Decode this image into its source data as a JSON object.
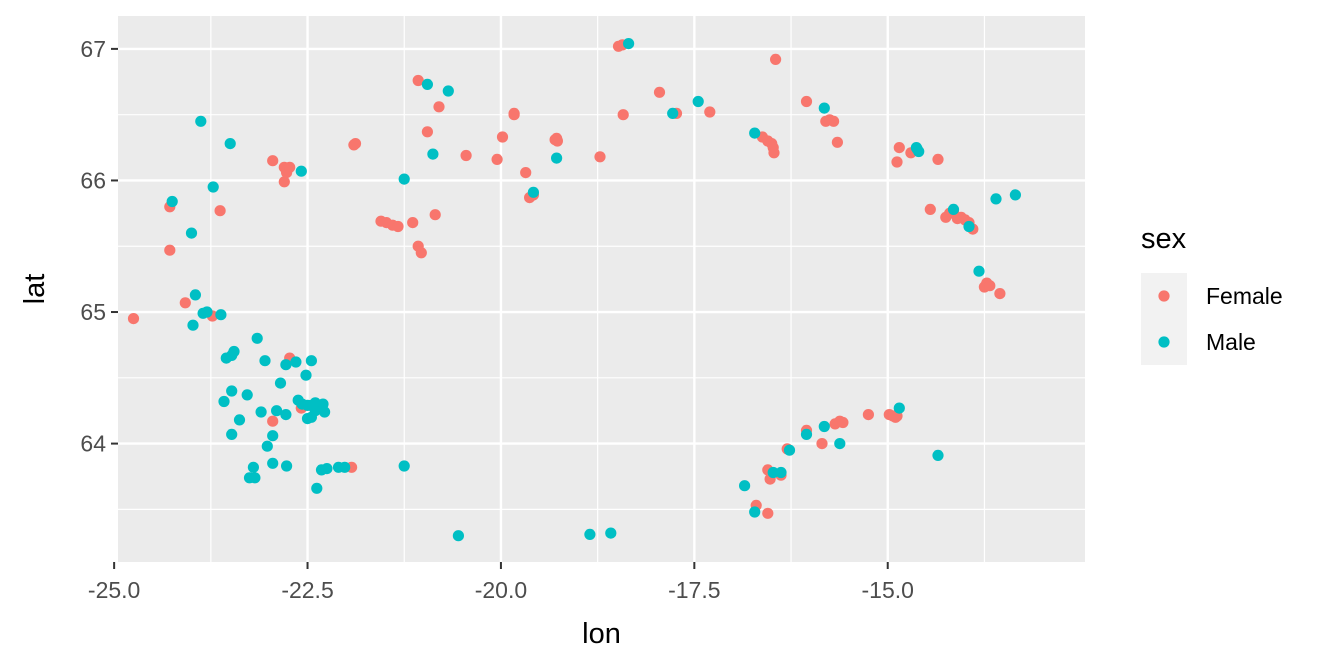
{
  "chart_data": {
    "type": "scatter",
    "title": "",
    "xlabel": "lon",
    "ylabel": "lat",
    "xlim": [
      -24.95,
      -12.45
    ],
    "ylim": [
      63.1,
      67.25
    ],
    "x_ticks": [
      -25.0,
      -22.5,
      -20.0,
      -17.5,
      -15.0
    ],
    "x_tick_labels": [
      "-25.0",
      "-22.5",
      "-20.0",
      "-17.5",
      "-15.0"
    ],
    "y_ticks": [
      64,
      65,
      66,
      67
    ],
    "y_tick_labels": [
      "64",
      "65",
      "66",
      "67"
    ],
    "grid": true,
    "legend": {
      "title": "sex",
      "position": "right"
    },
    "series": [
      {
        "name": "Female",
        "color": "#F8766D",
        "points": [
          [
            -24.75,
            64.95
          ],
          [
            -24.28,
            65.8
          ],
          [
            -24.28,
            65.47
          ],
          [
            -24.08,
            65.07
          ],
          [
            -23.73,
            64.97
          ],
          [
            -23.63,
            65.77
          ],
          [
            -22.95,
            66.15
          ],
          [
            -22.8,
            66.1
          ],
          [
            -22.77,
            66.06
          ],
          [
            -22.8,
            65.99
          ],
          [
            -22.73,
            66.1
          ],
          [
            -22.73,
            64.65
          ],
          [
            -22.95,
            64.17
          ],
          [
            -22.58,
            64.27
          ],
          [
            -21.93,
            63.82
          ],
          [
            -21.88,
            66.28
          ],
          [
            -21.9,
            66.27
          ],
          [
            -21.55,
            65.69
          ],
          [
            -21.48,
            65.68
          ],
          [
            -21.4,
            65.66
          ],
          [
            -21.33,
            65.65
          ],
          [
            -21.14,
            65.68
          ],
          [
            -21.07,
            65.5
          ],
          [
            -21.03,
            65.45
          ],
          [
            -20.85,
            65.74
          ],
          [
            -21.07,
            66.76
          ],
          [
            -20.95,
            66.37
          ],
          [
            -20.8,
            66.56
          ],
          [
            -20.45,
            66.19
          ],
          [
            -20.05,
            66.16
          ],
          [
            -19.98,
            66.33
          ],
          [
            -19.83,
            66.5
          ],
          [
            -19.83,
            66.51
          ],
          [
            -19.68,
            66.06
          ],
          [
            -19.63,
            65.87
          ],
          [
            -19.58,
            65.89
          ],
          [
            -19.3,
            66.31
          ],
          [
            -19.27,
            66.3
          ],
          [
            -19.28,
            66.32
          ],
          [
            -18.72,
            66.18
          ],
          [
            -18.48,
            67.02
          ],
          [
            -18.43,
            67.03
          ],
          [
            -18.42,
            66.5
          ],
          [
            -17.95,
            66.67
          ],
          [
            -17.73,
            66.51
          ],
          [
            -17.3,
            66.52
          ],
          [
            -16.62,
            66.33
          ],
          [
            -16.55,
            66.3
          ],
          [
            -16.5,
            66.28
          ],
          [
            -16.48,
            66.25
          ],
          [
            -16.47,
            66.21
          ],
          [
            -16.45,
            66.92
          ],
          [
            -16.05,
            66.6
          ],
          [
            -15.8,
            66.45
          ],
          [
            -15.75,
            66.46
          ],
          [
            -15.7,
            66.45
          ],
          [
            -15.65,
            66.29
          ],
          [
            -14.85,
            66.25
          ],
          [
            -14.88,
            66.14
          ],
          [
            -14.7,
            66.21
          ],
          [
            -14.45,
            65.78
          ],
          [
            -14.35,
            66.16
          ],
          [
            -14.2,
            65.75
          ],
          [
            -14.15,
            65.76
          ],
          [
            -14.1,
            65.71
          ],
          [
            -14.05,
            65.72
          ],
          [
            -14.0,
            65.7
          ],
          [
            -13.95,
            65.68
          ],
          [
            -13.9,
            65.63
          ],
          [
            -14.25,
            65.72
          ],
          [
            -13.75,
            65.19
          ],
          [
            -13.72,
            65.22
          ],
          [
            -13.68,
            65.2
          ],
          [
            -13.55,
            65.14
          ],
          [
            -15.25,
            64.22
          ],
          [
            -14.98,
            64.22
          ],
          [
            -14.93,
            64.21
          ],
          [
            -14.88,
            64.21
          ],
          [
            -14.9,
            64.2
          ],
          [
            -15.68,
            64.15
          ],
          [
            -15.62,
            64.17
          ],
          [
            -15.58,
            64.16
          ],
          [
            -15.85,
            64.0
          ],
          [
            -16.05,
            64.1
          ],
          [
            -16.3,
            63.96
          ],
          [
            -16.55,
            63.8
          ],
          [
            -16.52,
            63.73
          ],
          [
            -16.38,
            63.76
          ],
          [
            -16.7,
            63.53
          ],
          [
            -16.55,
            63.47
          ]
        ]
      },
      {
        "name": "Male",
        "color": "#00BFC4",
        "points": [
          [
            -24.25,
            65.84
          ],
          [
            -24.0,
            65.6
          ],
          [
            -23.72,
            65.95
          ],
          [
            -23.88,
            66.45
          ],
          [
            -23.5,
            66.28
          ],
          [
            -23.95,
            65.13
          ],
          [
            -23.85,
            64.99
          ],
          [
            -23.8,
            65.0
          ],
          [
            -23.62,
            64.98
          ],
          [
            -23.98,
            64.9
          ],
          [
            -23.55,
            64.65
          ],
          [
            -23.48,
            64.67
          ],
          [
            -23.45,
            64.7
          ],
          [
            -23.15,
            64.8
          ],
          [
            -23.05,
            64.63
          ],
          [
            -22.85,
            64.46
          ],
          [
            -22.78,
            64.6
          ],
          [
            -22.65,
            64.62
          ],
          [
            -22.45,
            64.63
          ],
          [
            -22.52,
            64.52
          ],
          [
            -22.62,
            64.33
          ],
          [
            -22.57,
            64.3
          ],
          [
            -22.5,
            64.29
          ],
          [
            -22.45,
            64.29
          ],
          [
            -22.4,
            64.31
          ],
          [
            -22.35,
            64.28
          ],
          [
            -22.3,
            64.3
          ],
          [
            -22.4,
            64.25
          ],
          [
            -22.28,
            64.24
          ],
          [
            -22.45,
            64.2
          ],
          [
            -22.5,
            64.19
          ],
          [
            -22.78,
            64.22
          ],
          [
            -22.9,
            64.25
          ],
          [
            -23.1,
            64.24
          ],
          [
            -23.58,
            64.32
          ],
          [
            -23.48,
            64.4
          ],
          [
            -23.28,
            64.37
          ],
          [
            -23.38,
            64.18
          ],
          [
            -23.48,
            64.07
          ],
          [
            -23.02,
            63.98
          ],
          [
            -22.95,
            64.06
          ],
          [
            -22.95,
            63.85
          ],
          [
            -22.77,
            63.83
          ],
          [
            -23.2,
            63.82
          ],
          [
            -23.25,
            63.74
          ],
          [
            -23.18,
            63.74
          ],
          [
            -22.38,
            63.66
          ],
          [
            -22.32,
            63.8
          ],
          [
            -22.25,
            63.81
          ],
          [
            -22.1,
            63.82
          ],
          [
            -22.02,
            63.82
          ],
          [
            -22.58,
            66.07
          ],
          [
            -21.25,
            66.01
          ],
          [
            -20.95,
            66.73
          ],
          [
            -20.68,
            66.68
          ],
          [
            -20.88,
            66.2
          ],
          [
            -21.25,
            63.83
          ],
          [
            -20.55,
            63.3
          ],
          [
            -19.58,
            65.91
          ],
          [
            -19.28,
            66.17
          ],
          [
            -18.85,
            63.31
          ],
          [
            -18.58,
            63.32
          ],
          [
            -18.35,
            67.04
          ],
          [
            -17.78,
            66.51
          ],
          [
            -17.45,
            66.6
          ],
          [
            -16.72,
            66.36
          ],
          [
            -15.82,
            66.55
          ],
          [
            -14.63,
            66.25
          ],
          [
            -14.6,
            66.22
          ],
          [
            -14.62,
            66.24
          ],
          [
            -14.15,
            65.78
          ],
          [
            -13.95,
            65.65
          ],
          [
            -13.35,
            65.89
          ],
          [
            -13.6,
            65.86
          ],
          [
            -13.82,
            65.31
          ],
          [
            -14.85,
            64.27
          ],
          [
            -15.62,
            64.0
          ],
          [
            -15.82,
            64.13
          ],
          [
            -16.05,
            64.07
          ],
          [
            -16.27,
            63.95
          ],
          [
            -16.38,
            63.78
          ],
          [
            -16.48,
            63.78
          ],
          [
            -16.72,
            63.48
          ],
          [
            -16.85,
            63.68
          ],
          [
            -14.35,
            63.91
          ]
        ]
      }
    ]
  }
}
